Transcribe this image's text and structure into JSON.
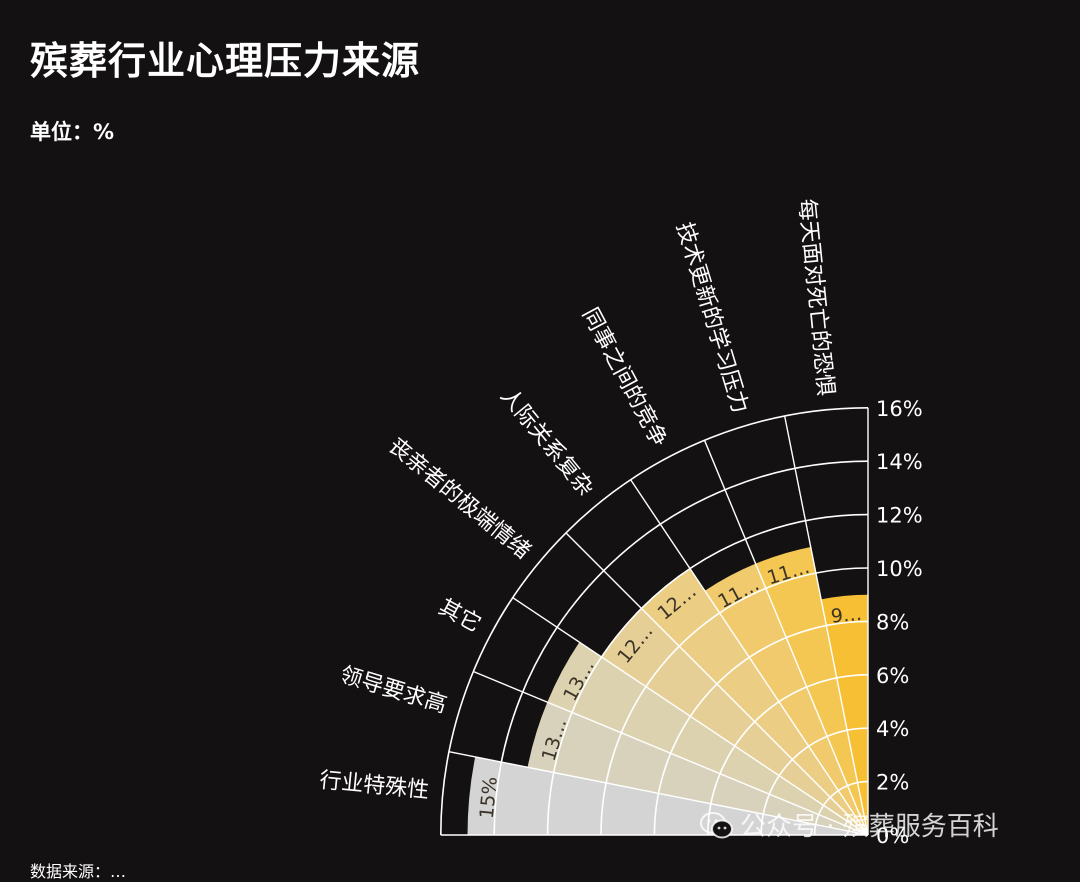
{
  "title": "殡葬行业心理压力来源",
  "unit_label": "单位：%",
  "watermark": {
    "icon": "wechat-icon",
    "text": "公众号 · 殡葬服务百科"
  },
  "footnote": "数据来源：…",
  "chart_data": {
    "type": "radial-bar",
    "title": "殡葬行业心理压力来源",
    "unit": "%",
    "rlim": [
      0,
      16
    ],
    "grid": true,
    "ticks": [
      "0%",
      "2%",
      "4%",
      "6%",
      "8%",
      "10%",
      "12%",
      "14%",
      "16%"
    ],
    "categories": [
      "行业特殊性",
      "领导要求高",
      "其它",
      "丧亲者的极端情绪",
      "人际关系复杂",
      "同事之间的竞争",
      "技术更新的学习压力",
      "每天面对死亡的恐惧"
    ],
    "values": [
      15,
      13,
      13,
      12,
      12,
      11,
      11,
      9
    ],
    "value_labels": [
      "15%",
      "13…",
      "13…",
      "12…",
      "12…",
      "11…",
      "11…",
      "9…"
    ],
    "colors": [
      "#d4d4d4",
      "#d8d2bd",
      "#ddd2b0",
      "#e6cf96",
      "#ebce84",
      "#f0ca6d",
      "#f4c752",
      "#f7bf33"
    ]
  }
}
